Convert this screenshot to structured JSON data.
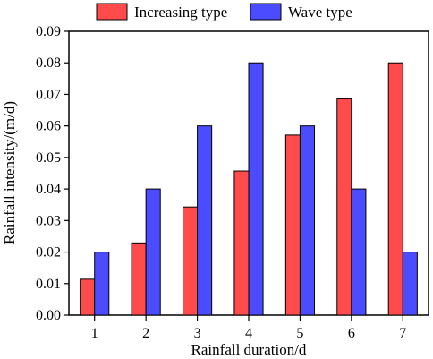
{
  "chart_data": {
    "type": "bar",
    "title": "",
    "xlabel": "Rainfall duration/d",
    "ylabel": "Rainfall intensity/(m/d)",
    "categories": [
      "1",
      "2",
      "3",
      "4",
      "5",
      "6",
      "7"
    ],
    "ylim": [
      0,
      0.09
    ],
    "yticks": [
      "0.00",
      "0.01",
      "0.02",
      "0.03",
      "0.04",
      "0.05",
      "0.06",
      "0.07",
      "0.08",
      "0.09"
    ],
    "grid": false,
    "legend_position": "top",
    "series": [
      {
        "name": "Increasing type",
        "color": "#ff4b4b",
        "values": [
          0.0114,
          0.0229,
          0.0343,
          0.0457,
          0.0571,
          0.0686,
          0.08
        ]
      },
      {
        "name": "Wave type",
        "color": "#4b4bff",
        "values": [
          0.02,
          0.04,
          0.06,
          0.08,
          0.06,
          0.04,
          0.02
        ]
      }
    ]
  }
}
